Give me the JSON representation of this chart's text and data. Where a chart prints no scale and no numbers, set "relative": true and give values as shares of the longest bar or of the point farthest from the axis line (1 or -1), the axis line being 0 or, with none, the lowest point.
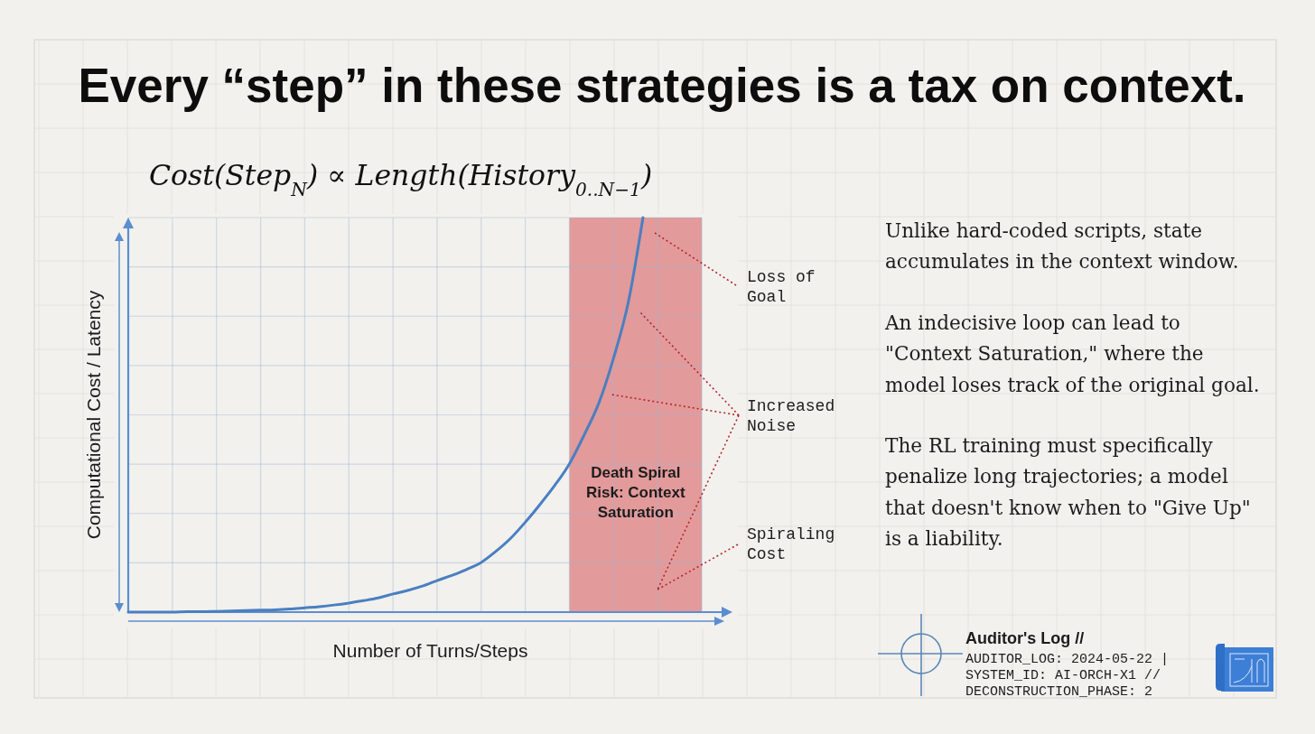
{
  "chart_data": {
    "type": "line",
    "title": "Every “step” in these strategies is a tax on context.",
    "subtitle": "Cost(Step$_{N}$) ∝ Length(History$_{0..N−1}$)",
    "xlabel": "Number of Turns/Steps",
    "ylabel": "Computational Cost / Latency",
    "relative": true,
    "categories": [
      null,
      null,
      null,
      null,
      null,
      null,
      null,
      null,
      null,
      null,
      null,
      null,
      null,
      null,
      null,
      null,
      null,
      null,
      null,
      null,
      null,
      null,
      null,
      null,
      null,
      null,
      null,
      null,
      null,
      null,
      null,
      null,
      null,
      null,
      null,
      null
    ],
    "series": [
      {
        "color": "#4a7fc1",
        "values": [
          0,
          0,
          0,
          0,
          0.001,
          0.001,
          0.002,
          0.003,
          0.004,
          0.005,
          0.006,
          0.008,
          0.011,
          0.014,
          0.018,
          0.023,
          0.029,
          0.036,
          0.046,
          0.055,
          0.066,
          0.08,
          0.093,
          0.108,
          0.126,
          0.154,
          0.187,
          0.228,
          0.273,
          0.321,
          0.376,
          0.449,
          0.53,
          0.644,
          0.785,
          1
        ]
      }
    ],
    "grid": true,
    "annotations": [
      "Death Spiral Risk: Context Saturation",
      "Loss of Goal",
      "Increased Noise",
      "Spiraling Cost",
      "Unlike hard-coded scripts, state accumulates in the context window.",
      "An indecisive loop can lead to \"Context Saturation,\" where the model loses track of the original goal.",
      "The RL training must specifically penalize long trajectories; a model that doesn't know when to \"Give Up\" is a liability.",
      "Auditor's Log //",
      "AUDITOR_LOG: 2024-05-22 |",
      "SYSTEM_ID: AI-ORCH-X1 //",
      "DECONSTRUCTION_PHASE: 2"
    ]
  }
}
